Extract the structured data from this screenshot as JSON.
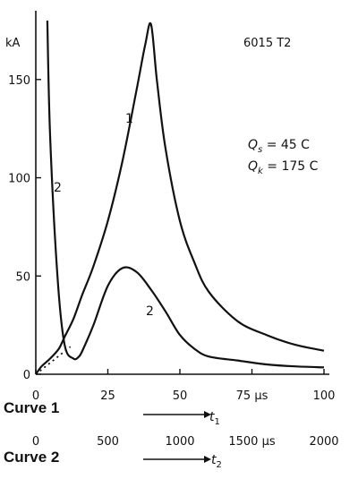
{
  "chart_data": {
    "type": "line",
    "title": "",
    "corner_label": "6015 T2",
    "y_unit": "kA",
    "ylim": [
      0,
      185
    ],
    "yticks": [
      "0",
      "50",
      "100",
      "150"
    ],
    "y_tick_values": [
      0,
      50,
      100,
      150
    ],
    "axis_1": {
      "caption": "Curve 1",
      "variable": "t",
      "subscript": "1",
      "xlim": [
        0,
        100
      ],
      "ticks": [
        "0",
        "25",
        "50",
        "75 µs",
        "100"
      ],
      "tick_values": [
        0,
        25,
        50,
        75,
        100
      ]
    },
    "axis_2": {
      "caption": "Curve 2",
      "variable": "t",
      "subscript": "2",
      "xlim": [
        0,
        2000
      ],
      "ticks": [
        "0",
        "500",
        "1000",
        "1500 µs",
        "2000"
      ],
      "tick_values": [
        0,
        500,
        1000,
        1500,
        2000
      ]
    },
    "annotations": {
      "qs_symbol": "Q",
      "qs_sub": "s",
      "qs_value": " = 45 C",
      "qk_symbol": "Q",
      "qk_sub": "k",
      "qk_value": " = 175 C"
    },
    "series": [
      {
        "name": "1",
        "x_axis": "t1 (µs)",
        "x": [
          0,
          2,
          5,
          8,
          10,
          13,
          16,
          20,
          25,
          30,
          35,
          38,
          40,
          42,
          45,
          50,
          55,
          60,
          70,
          80,
          90,
          100
        ],
        "y": [
          0,
          4,
          8,
          13,
          19,
          28,
          40,
          55,
          78,
          108,
          145,
          168,
          178,
          150,
          115,
          78,
          57,
          42,
          27,
          20,
          15,
          12
        ]
      },
      {
        "name": "2",
        "x_axis": "t2 (µs)",
        "x": [
          80,
          100,
          150,
          200,
          260,
          300,
          330,
          400,
          500,
          600,
          700,
          800,
          900,
          1000,
          1100,
          1200,
          1400,
          1600,
          1800,
          2000
        ],
        "y": [
          180,
          120,
          50,
          15,
          8,
          9,
          13,
          25,
          45,
          54,
          52,
          43,
          32,
          20,
          13,
          9,
          7,
          5,
          4,
          3.5
        ]
      }
    ],
    "extrapolation": {
      "style": "dotted",
      "x": [
        0,
        12
      ],
      "y": [
        0,
        14
      ]
    },
    "curve_labels": [
      "1",
      "2",
      "2"
    ]
  }
}
